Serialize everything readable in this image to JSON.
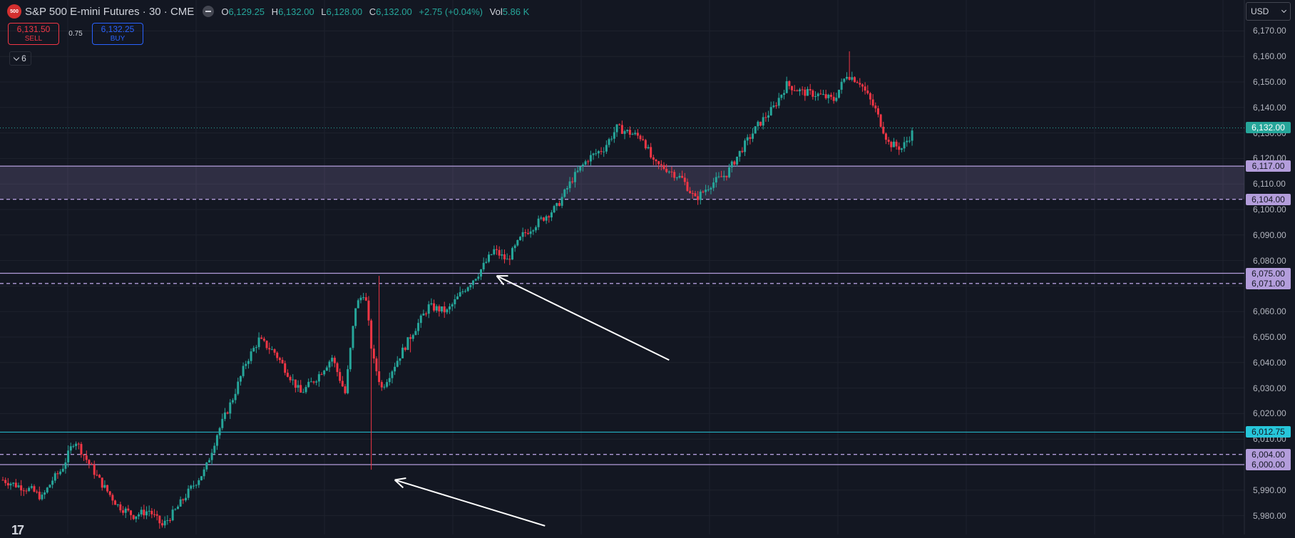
{
  "header": {
    "exchange_badge": "500",
    "symbol": "S&P 500 E-mini Futures · 30 · CME",
    "ohlc": {
      "o_label": "O",
      "o": "6,129.25",
      "h_label": "H",
      "h": "6,132.00",
      "l_label": "L",
      "l": "6,128.00",
      "c_label": "C",
      "c": "6,132.00",
      "change": "+2.75 (+0.04%)",
      "vol_label": "Vol",
      "vol": "5.86 K"
    },
    "sell_price": "6,131.50",
    "sell_label": "SELL",
    "spread": "0.75",
    "buy_price": "6,132.25",
    "buy_label": "BUY",
    "indicator_count": "6",
    "currency": "USD",
    "colors": {
      "bg": "#131722",
      "up": "#26a69a",
      "down": "#f23645",
      "zone": "#b39ddb"
    }
  },
  "chart_data": {
    "type": "candlestick",
    "title": "S&P 500 E-mini Futures · 30 · CME",
    "ylim": [
      5977,
      6176
    ],
    "y_ticks": [
      5980,
      5990,
      6000,
      6010,
      6020,
      6030,
      6040,
      6050,
      6060,
      6070,
      6080,
      6090,
      6100,
      6110,
      6120,
      6130,
      6140,
      6150,
      6160,
      6170
    ],
    "y_tick_labels": [
      "5,980.00",
      "5,990.00",
      "6,000.00",
      "6,010.00",
      "6,020.00",
      "6,030.00",
      "6,040.00",
      "6,050.00",
      "6,060.00",
      "6,070.00",
      "6,080.00",
      "6,090.00",
      "6,100.00",
      "6,110.00",
      "6,120.00",
      "6,130.00",
      "6,140.00",
      "6,150.00",
      "6,160.00",
      "6,170.00"
    ],
    "grid": true,
    "last_price": 6132.0,
    "last_price_label": "6,132.00",
    "levels": [
      {
        "price": 6117.0,
        "label": "6,117.00",
        "style": "solid"
      },
      {
        "price": 6104.0,
        "label": "6,104.00",
        "style": "dashed"
      },
      {
        "price": 6075.0,
        "label": "6,075.00",
        "style": "solid"
      },
      {
        "price": 6071.0,
        "label": "6,071.00",
        "style": "dashed"
      },
      {
        "price": 6004.0,
        "label": "6,004.00",
        "style": "dashed"
      },
      {
        "price": 6000.0,
        "label": "6,000.00",
        "style": "solid"
      }
    ],
    "cyan_level": {
      "price": 6012.75,
      "label": "6,012.75"
    },
    "zones": [
      {
        "from": 6104.0,
        "to": 6117.0
      }
    ],
    "candle_count": 300,
    "anchors": [
      [
        0,
        5994
      ],
      [
        10,
        5992
      ],
      [
        22,
        5990
      ],
      [
        30,
        5987
      ],
      [
        38,
        5994
      ],
      [
        45,
        5998
      ],
      [
        55,
        6010
      ],
      [
        64,
        6002
      ],
      [
        75,
        5993
      ],
      [
        88,
        5984
      ],
      [
        100,
        5980
      ],
      [
        112,
        5982
      ],
      [
        122,
        5976
      ],
      [
        132,
        5982
      ],
      [
        143,
        5990
      ],
      [
        155,
        5998
      ],
      [
        164,
        6012
      ],
      [
        176,
        6026
      ],
      [
        186,
        6040
      ],
      [
        196,
        6049
      ],
      [
        208,
        6044
      ],
      [
        218,
        6036
      ],
      [
        228,
        6028
      ],
      [
        240,
        6034
      ],
      [
        252,
        6042
      ],
      [
        262,
        6028
      ],
      [
        270,
        6062
      ],
      [
        277,
        6068
      ],
      [
        283,
        6042
      ],
      [
        290,
        6030
      ],
      [
        302,
        6041
      ],
      [
        314,
        6052
      ],
      [
        326,
        6062
      ],
      [
        340,
        6060
      ],
      [
        352,
        6068
      ],
      [
        364,
        6075
      ],
      [
        376,
        6084
      ],
      [
        386,
        6080
      ],
      [
        398,
        6090
      ],
      [
        412,
        6096
      ],
      [
        424,
        6101
      ],
      [
        436,
        6112
      ],
      [
        448,
        6120
      ],
      [
        460,
        6124
      ],
      [
        470,
        6132
      ],
      [
        480,
        6130
      ],
      [
        490,
        6128
      ],
      [
        498,
        6118
      ],
      [
        508,
        6116
      ],
      [
        520,
        6112
      ],
      [
        530,
        6104
      ],
      [
        542,
        6110
      ],
      [
        554,
        6114
      ],
      [
        566,
        6124
      ],
      [
        578,
        6133
      ],
      [
        590,
        6140
      ],
      [
        600,
        6149
      ],
      [
        612,
        6146
      ],
      [
        624,
        6145
      ],
      [
        636,
        6143
      ],
      [
        646,
        6153
      ],
      [
        656,
        6150
      ],
      [
        668,
        6139
      ],
      [
        678,
        6126
      ],
      [
        688,
        6124
      ],
      [
        696,
        6130
      ]
    ],
    "volatility_spikes": [
      {
        "t": 282,
        "low": 5998
      },
      {
        "t": 288,
        "high": 6074
      },
      {
        "t": 312,
        "low": 6044
      },
      {
        "t": 648,
        "high": 6162
      }
    ],
    "annotations": [
      {
        "type": "arrow",
        "from_price": 6041,
        "to_price": 6074,
        "from_t": 510,
        "to_t": 378
      },
      {
        "type": "arrow",
        "from_price": 5976,
        "to_price": 5994,
        "from_t": 415,
        "to_t": 300
      }
    ]
  }
}
